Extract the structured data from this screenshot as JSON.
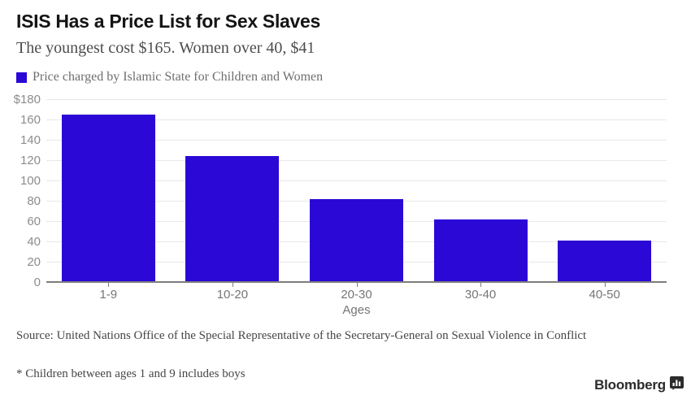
{
  "header": {
    "title": "ISIS Has a Price List for Sex Slaves",
    "subtitle": "The youngest cost $165. Women over 40, $41"
  },
  "legend": {
    "label": "Price charged by Islamic State for Children and Women",
    "swatch_color": "#2b08d6"
  },
  "chart_data": {
    "type": "bar",
    "title": "ISIS Has a Price List for Sex Slaves",
    "categories": [
      "1-9",
      "10-20",
      "20-30",
      "30-40",
      "40-50"
    ],
    "values": [
      165,
      124,
      82,
      62,
      41
    ],
    "series_label": "Price charged by Islamic State for Children and Women",
    "xlabel": "Ages",
    "ylabel": "",
    "ylim": [
      0,
      180
    ],
    "ytick_step": 20,
    "ytick_top_label": "$180",
    "bar_color": "#2b08d6",
    "grid": true,
    "legend_position": "top-left"
  },
  "footer": {
    "source": "Source: United Nations Office of the Special Representative of the Secretary-General on Sexual Violence in Conflict",
    "footnote": "* Children between ages 1 and 9 includes boys",
    "brand": "Bloomberg",
    "brand_icon": "bar-chart-icon"
  }
}
